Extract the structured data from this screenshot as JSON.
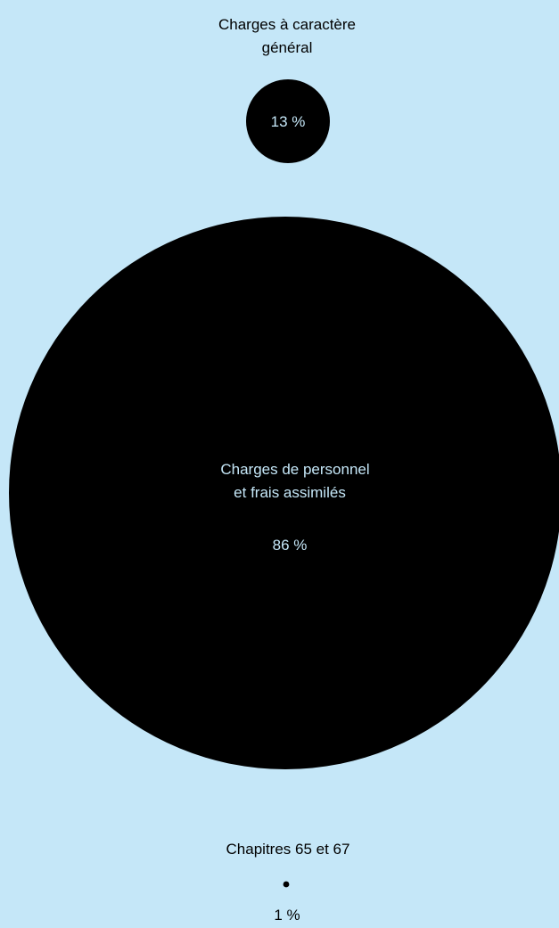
{
  "chart_data": {
    "type": "bubble",
    "series": [
      {
        "name_lines": [
          "Charges à caractère",
          "général"
        ],
        "value": 13,
        "value_label": "13 %",
        "label_position": "above"
      },
      {
        "name_lines": [
          "Charges de personnel",
          "et frais assimilés"
        ],
        "value": 86,
        "value_label": "86 %",
        "label_position": "inside"
      },
      {
        "name_lines": [
          "Chapitres 65 et 67"
        ],
        "value": 1,
        "value_label": "1 %",
        "label_position": "above"
      }
    ]
  },
  "colors": {
    "background": "#c5e7f8",
    "bubble": "#000000",
    "text_on_background": "#000000",
    "text_on_bubble": "#c5e7f8"
  }
}
